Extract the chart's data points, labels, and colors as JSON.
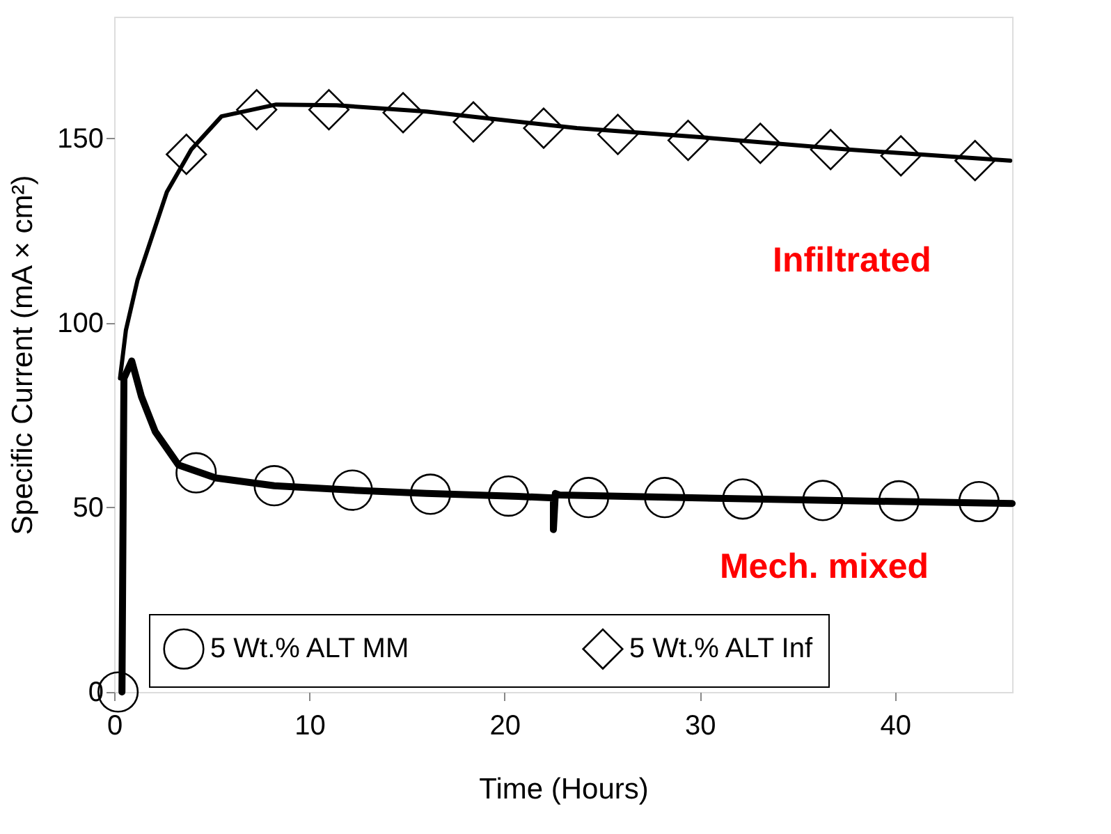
{
  "chart_data": {
    "type": "scatter",
    "xlabel": "Time (Hours)",
    "ylabel": "Specific Current (mA × cm²)",
    "xlim": [
      0,
      46
    ],
    "ylim": [
      0,
      183
    ],
    "xticks": [
      0,
      10,
      20,
      30,
      40
    ],
    "yticks": [
      0,
      50,
      100,
      150
    ],
    "grid": false,
    "legend": "bottom",
    "series": [
      {
        "name": "5 Wt.% ALT MM",
        "marker": "circle",
        "color": "#000000",
        "x": [
          0.2,
          4.2,
          8.2,
          12.2,
          16.2,
          20.2,
          24.3,
          28.2,
          32.2,
          36.3,
          40.2,
          44.3
        ],
        "values": [
          0,
          59.4,
          55.9,
          54.7,
          53.6,
          53.1,
          52.7,
          52.7,
          52.3,
          51.9,
          51.8,
          51.6
        ]
      },
      {
        "name": "5 Wt.% ALT Inf",
        "marker": "diamond",
        "color": "#000000",
        "x": [
          3.7,
          7.3,
          11.0,
          14.8,
          18.4,
          22.0,
          25.8,
          29.4,
          33.1,
          36.7,
          40.3,
          44.1
        ],
        "values": [
          145.7,
          157.8,
          157.8,
          157.0,
          154.5,
          152.8,
          151.1,
          149.5,
          148.7,
          147.0,
          145.3,
          144.0
        ]
      },
      {
        "type": "line",
        "marker": "none",
        "line_style": "solid",
        "color": "#000000",
        "x": [
          0.4,
          0.5,
          0.9,
          1.4,
          2.1,
          3.3,
          5.2,
          8.2,
          12.2,
          16.0,
          20.7,
          22.5,
          22.5,
          22.6,
          22.8,
          30.0,
          38.0,
          46.0
        ],
        "values": [
          0,
          85,
          89.7,
          80,
          70.6,
          61.5,
          58,
          55.9,
          54.7,
          53.8,
          53,
          52.6,
          44,
          53.8,
          53.4,
          52.6,
          51.8,
          51.1
        ]
      },
      {
        "type": "line",
        "marker": "none",
        "line_style": "solid",
        "color": "#000000",
        "x": [
          0.3,
          0.6,
          1.2,
          2.7,
          3.95,
          5.5,
          8.3,
          11.4,
          16.0,
          23.7,
          29.9,
          37.6,
          45.9
        ],
        "values": [
          85,
          98,
          111.7,
          135.5,
          147,
          156,
          159.2,
          159,
          157.3,
          152.8,
          150.4,
          147,
          144
        ]
      }
    ],
    "annotations": [
      "Infiltrated",
      "Mech. mixed"
    ]
  }
}
